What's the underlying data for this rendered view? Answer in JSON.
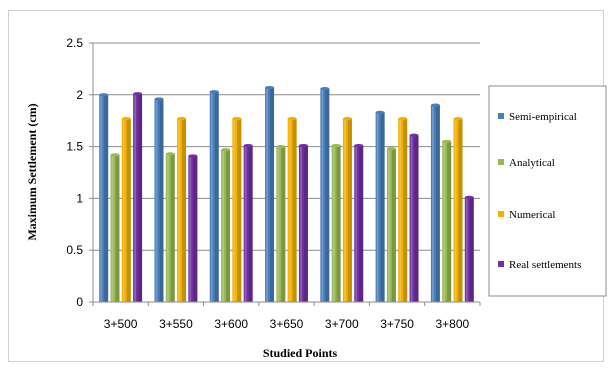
{
  "chart_data": {
    "type": "bar",
    "categories": [
      "3+500",
      "3+550",
      "3+600",
      "3+650",
      "3+700",
      "3+750",
      "3+800"
    ],
    "series": [
      {
        "name": "Semi-empirical",
        "color": "#4a7ebb",
        "values": [
          2.0,
          1.96,
          2.03,
          2.07,
          2.06,
          1.83,
          1.9
        ]
      },
      {
        "name": "Analytical",
        "color": "#98b954",
        "values": [
          1.42,
          1.43,
          1.47,
          1.5,
          1.51,
          1.48,
          1.55
        ]
      },
      {
        "name": "Numerical",
        "color": "#f0b000",
        "values": [
          1.77,
          1.77,
          1.77,
          1.77,
          1.77,
          1.77,
          1.77
        ]
      },
      {
        "name": "Real settlements",
        "color": "#7030a0",
        "values": [
          2.01,
          1.41,
          1.51,
          1.51,
          1.51,
          1.61,
          1.01
        ]
      }
    ],
    "xlabel": "Studied Points",
    "ylabel": "Maximum Settlement (cm)",
    "ylim": [
      0,
      2.5
    ],
    "yticks": [
      "0",
      "0.5",
      "1",
      "1.5",
      "2",
      "2.5"
    ],
    "grid": true,
    "legend_position": "right"
  }
}
